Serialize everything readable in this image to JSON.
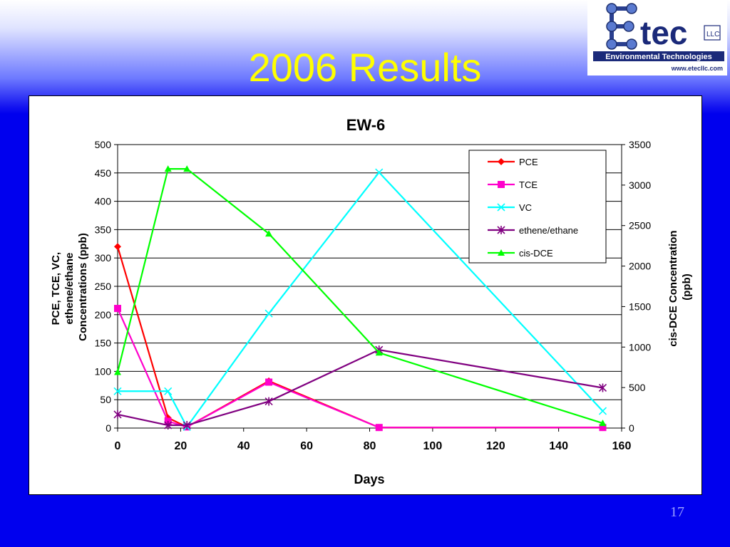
{
  "slide": {
    "title": "2006 Results",
    "page_number": "17"
  },
  "logo": {
    "brand": "tec",
    "llc": "LLC",
    "tagline": "Environmental Technologies",
    "url": "www.etecllc.com"
  },
  "chart_data": {
    "type": "line",
    "title": "EW-6",
    "xlabel": "Days",
    "ylabel_left": "PCE, TCE, VC, ethene/ethane Concentrations (ppb)",
    "ylabel_left_lines": [
      "PCE, TCE, VC,",
      "ethene/ethane",
      "Concentrations (ppb)"
    ],
    "ylabel_right": "cis-DCE Concentration (ppb)",
    "ylabel_right_lines": [
      "cis-DCE Concentration",
      "(ppb)"
    ],
    "xlim": [
      0,
      160
    ],
    "ylim_left": [
      0,
      500
    ],
    "ylim_right": [
      0,
      3500
    ],
    "x_ticks": [
      0,
      20,
      40,
      60,
      80,
      100,
      120,
      140,
      160
    ],
    "y_ticks_left": [
      0,
      50,
      100,
      150,
      200,
      250,
      300,
      350,
      400,
      450,
      500
    ],
    "y_ticks_right": [
      0,
      500,
      1000,
      1500,
      2000,
      2500,
      3000,
      3500
    ],
    "grid": "horizontal",
    "legend_position": "top-right",
    "series": [
      {
        "name": "PCE",
        "axis": "left",
        "color": "#ff0000",
        "marker": "diamond",
        "x": [
          0,
          16,
          22,
          48,
          83,
          154
        ],
        "y": [
          320,
          18,
          2,
          83,
          1,
          1
        ]
      },
      {
        "name": "TCE",
        "axis": "left",
        "color": "#ff00cc",
        "marker": "square",
        "x": [
          0,
          16,
          22,
          48,
          83,
          154
        ],
        "y": [
          211,
          12,
          2,
          81,
          1,
          1
        ]
      },
      {
        "name": "VC",
        "axis": "left",
        "color": "#00ffff",
        "marker": "x",
        "x": [
          0,
          16,
          22,
          48,
          83,
          154
        ],
        "y": [
          65,
          65,
          2,
          202,
          451,
          30
        ]
      },
      {
        "name": "ethene/ethane",
        "axis": "left",
        "color": "#800080",
        "marker": "star",
        "x": [
          0,
          16,
          22,
          48,
          83,
          154
        ],
        "y": [
          24,
          5,
          5,
          47,
          138,
          71
        ]
      },
      {
        "name": "cis-DCE",
        "axis": "right",
        "color": "#00ff00",
        "marker": "triangle",
        "x": [
          0,
          16,
          22,
          48,
          83,
          154
        ],
        "y": [
          690,
          3200,
          3200,
          2400,
          930,
          60
        ]
      }
    ]
  }
}
